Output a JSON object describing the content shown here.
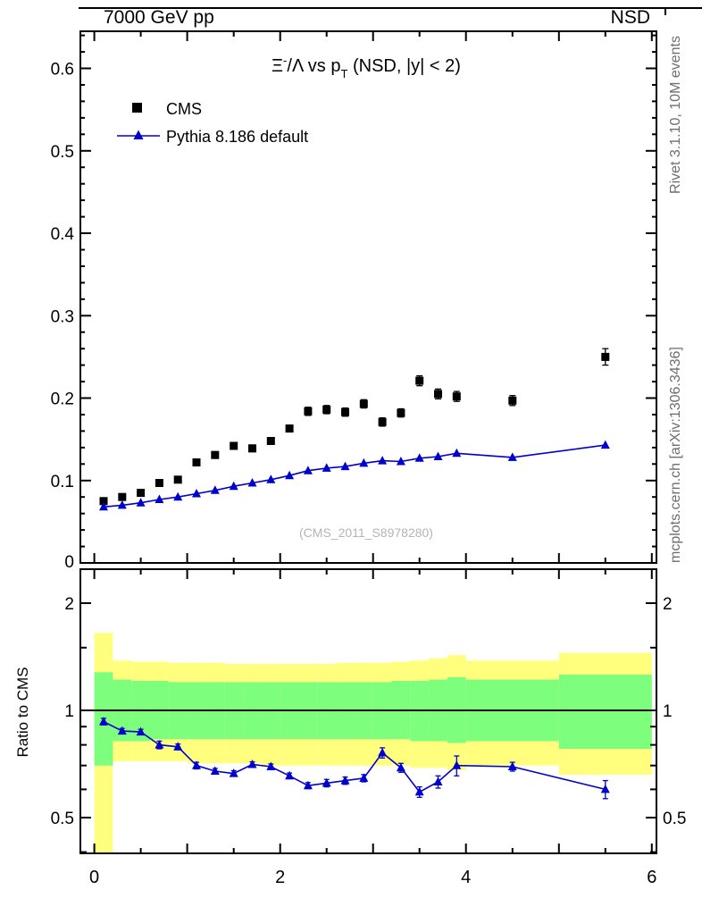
{
  "header": {
    "left": "7000 GeV pp",
    "right": "NSD"
  },
  "title": {
    "xi": "Ξ",
    "sup": "-",
    "mid": "/Λ vs p",
    "sub": "T",
    "tail": " (NSD, |y| < 2)"
  },
  "legend": {
    "cms": "CMS",
    "pythia": "Pythia 8.186 default"
  },
  "watermark": "(CMS_2011_S8978280)",
  "side": {
    "rivet": "Rivet 3.1.10, 10M events",
    "mcplots": "mcplots.cern.ch [arXiv:1306.3436]"
  },
  "ratio_ylabel": "Ratio to CMS",
  "colors": {
    "cms": "#000000",
    "pythia": "#0000cd",
    "band_yellow": "#ffff7d",
    "band_green": "#7dff7d",
    "frame": "#000000",
    "watermark": "#b4b4b4",
    "side_text": "#6e6e6e"
  },
  "chart_data": [
    {
      "type": "scatter",
      "panel": "main",
      "title": "Xi-/Lambda vs pT (NSD, |y| < 2)",
      "xlabel": "",
      "ylabel": "",
      "xlim": [
        -0.15,
        6.05
      ],
      "ylim": [
        0,
        0.645
      ],
      "xticks": [
        0,
        2,
        4,
        6
      ],
      "xminor_step": 0.5,
      "yticks": [
        0,
        0.1,
        0.2,
        0.3,
        0.4,
        0.5,
        0.6
      ],
      "yminor_step": 0.02,
      "grid": false,
      "legend_position": "top-left",
      "series": [
        {
          "name": "CMS",
          "marker": "square",
          "x": [
            0.1,
            0.3,
            0.5,
            0.7,
            0.9,
            1.1,
            1.3,
            1.5,
            1.7,
            1.9,
            2.1,
            2.3,
            2.5,
            2.7,
            2.9,
            3.1,
            3.3,
            3.5,
            3.7,
            3.9,
            4.5,
            5.5
          ],
          "y": [
            0.075,
            0.08,
            0.085,
            0.097,
            0.101,
            0.122,
            0.131,
            0.142,
            0.139,
            0.148,
            0.163,
            0.184,
            0.186,
            0.183,
            0.193,
            0.171,
            0.182,
            0.221,
            0.205,
            0.202,
            0.197,
            0.25
          ],
          "yerr": [
            0.004,
            0.003,
            0.003,
            0.003,
            0.003,
            0.004,
            0.004,
            0.004,
            0.004,
            0.004,
            0.004,
            0.005,
            0.005,
            0.005,
            0.005,
            0.005,
            0.005,
            0.006,
            0.006,
            0.006,
            0.006,
            0.01
          ]
        },
        {
          "name": "Pythia 8.186 default",
          "marker": "triangle",
          "line": true,
          "x": [
            0.1,
            0.3,
            0.5,
            0.7,
            0.9,
            1.1,
            1.3,
            1.5,
            1.7,
            1.9,
            2.1,
            2.3,
            2.5,
            2.7,
            2.9,
            3.1,
            3.3,
            3.5,
            3.7,
            3.9,
            4.5,
            5.5
          ],
          "y": [
            0.068,
            0.07,
            0.073,
            0.077,
            0.08,
            0.084,
            0.088,
            0.093,
            0.097,
            0.101,
            0.106,
            0.112,
            0.115,
            0.117,
            0.121,
            0.124,
            0.123,
            0.127,
            0.129,
            0.133,
            0.128,
            0.143
          ]
        }
      ]
    },
    {
      "type": "ratio",
      "panel": "ratio",
      "ylabel": "Ratio to CMS",
      "yscale": "log2",
      "ylim": [
        0.397,
        2.49
      ],
      "yticks": [
        0.5,
        1,
        2
      ],
      "yticks_minor": [
        0.4,
        0.6,
        0.7,
        0.8,
        0.9,
        1.5
      ],
      "bands": {
        "edges": [
          0,
          0.2,
          0.4,
          0.6,
          0.8,
          1.0,
          1.2,
          1.4,
          1.6,
          1.8,
          2.0,
          2.2,
          2.4,
          2.6,
          2.8,
          3.0,
          3.2,
          3.4,
          3.6,
          3.8,
          4.0,
          5.0,
          6.0
        ],
        "yellow_lo": [
          0.4,
          0.72,
          0.72,
          0.72,
          0.72,
          0.71,
          0.71,
          0.71,
          0.71,
          0.7,
          0.7,
          0.7,
          0.7,
          0.7,
          0.7,
          0.7,
          0.7,
          0.69,
          0.69,
          0.68,
          0.7,
          0.66
        ],
        "yellow_hi": [
          1.65,
          1.38,
          1.37,
          1.37,
          1.36,
          1.36,
          1.36,
          1.35,
          1.35,
          1.35,
          1.35,
          1.35,
          1.35,
          1.36,
          1.36,
          1.36,
          1.37,
          1.38,
          1.4,
          1.43,
          1.38,
          1.45
        ],
        "green_lo": [
          0.7,
          0.82,
          0.82,
          0.83,
          0.83,
          0.83,
          0.83,
          0.83,
          0.83,
          0.83,
          0.83,
          0.83,
          0.83,
          0.83,
          0.83,
          0.83,
          0.83,
          0.82,
          0.82,
          0.81,
          0.82,
          0.78
        ],
        "green_hi": [
          1.28,
          1.22,
          1.21,
          1.21,
          1.2,
          1.2,
          1.2,
          1.2,
          1.2,
          1.2,
          1.2,
          1.2,
          1.2,
          1.2,
          1.2,
          1.2,
          1.21,
          1.21,
          1.22,
          1.24,
          1.22,
          1.26
        ]
      },
      "series": [
        {
          "name": "Pythia 8.186 default / CMS",
          "marker": "triangle",
          "line": true,
          "x": [
            0.1,
            0.3,
            0.5,
            0.7,
            0.9,
            1.1,
            1.3,
            1.5,
            1.7,
            1.9,
            2.1,
            2.3,
            2.5,
            2.7,
            2.9,
            3.1,
            3.3,
            3.5,
            3.7,
            3.9,
            4.5,
            5.5
          ],
          "y": [
            0.93,
            0.875,
            0.87,
            0.8,
            0.79,
            0.7,
            0.675,
            0.665,
            0.705,
            0.695,
            0.655,
            0.615,
            0.625,
            0.635,
            0.645,
            0.76,
            0.69,
            0.59,
            0.63,
            0.7,
            0.695,
            0.6
          ],
          "yerr": [
            0.02,
            0.015,
            0.015,
            0.02,
            0.015,
            0.015,
            0.012,
            0.012,
            0.012,
            0.012,
            0.012,
            0.012,
            0.015,
            0.015,
            0.015,
            0.025,
            0.02,
            0.02,
            0.025,
            0.045,
            0.02,
            0.035
          ]
        }
      ]
    }
  ]
}
